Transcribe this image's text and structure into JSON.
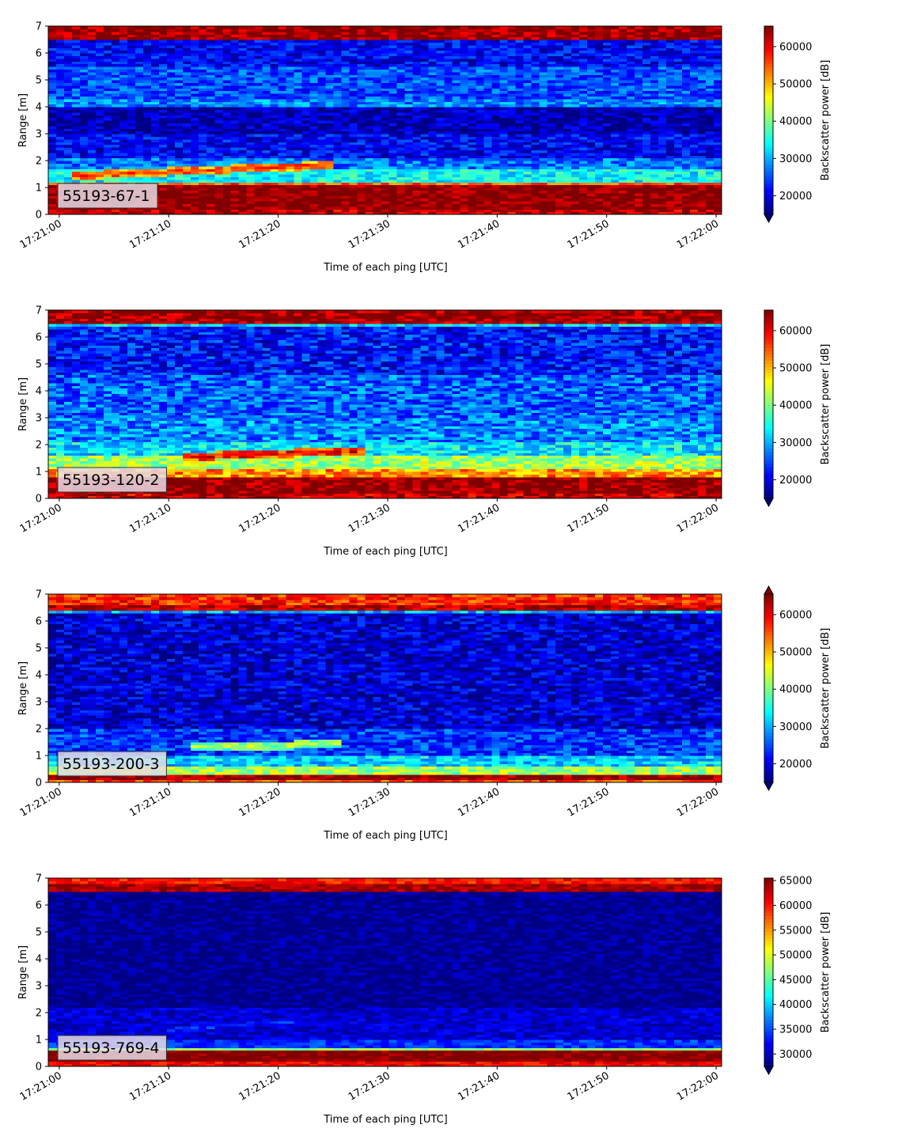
{
  "chart_data": [
    {
      "type": "heatmap",
      "label": "55193-67-1",
      "xlabel": "Time of each ping [UTC]",
      "ylabel": "Range [m]",
      "x_ticks": [
        "17:21:00",
        "17:21:10",
        "17:21:20",
        "17:21:30",
        "17:21:40",
        "17:21:50",
        "17:22:00"
      ],
      "y_ticks": [
        "0",
        "1",
        "2",
        "3",
        "4",
        "5",
        "6",
        "7"
      ],
      "xlim": [
        "17:20:59",
        "17:22:00.5"
      ],
      "ylim": [
        0,
        7
      ],
      "colorbar": {
        "label": "Backscatter power [dB]",
        "ticks": [
          "20000",
          "30000",
          "40000",
          "50000",
          "60000"
        ],
        "range": [
          15000,
          65500
        ],
        "colormap": "jet",
        "extend": "min"
      },
      "bands": [
        {
          "from": 0.0,
          "to": 0.25,
          "value": 62000
        },
        {
          "from": 0.25,
          "to": 1.1,
          "value": 65500
        },
        {
          "from": 1.1,
          "to": 1.25,
          "value": 55000
        },
        {
          "from": 1.25,
          "to": 1.7,
          "value": 34000
        },
        {
          "from": 1.7,
          "to": 2.1,
          "value": 27000
        },
        {
          "from": 2.1,
          "to": 3.0,
          "value": 21000
        },
        {
          "from": 3.0,
          "to": 4.0,
          "value": 17500
        },
        {
          "from": 4.0,
          "to": 4.3,
          "value": 28000
        },
        {
          "from": 4.3,
          "to": 5.5,
          "value": 25000
        },
        {
          "from": 5.5,
          "to": 6.45,
          "value": 21000
        },
        {
          "from": 6.45,
          "to": 6.52,
          "value": 34000
        },
        {
          "from": 6.52,
          "to": 7.0,
          "value": 64000
        }
      ],
      "target": {
        "start_s": 1,
        "end_s": 25,
        "range_start": 1.45,
        "range_end": 1.85,
        "value_peak": 56000
      },
      "noise": 5000,
      "seed": 11
    },
    {
      "type": "heatmap",
      "label": "55193-120-2",
      "xlabel": "Time of each ping [UTC]",
      "ylabel": "Range [m]",
      "x_ticks": [
        "17:21:00",
        "17:21:10",
        "17:21:20",
        "17:21:30",
        "17:21:40",
        "17:21:50",
        "17:22:00"
      ],
      "y_ticks": [
        "0",
        "1",
        "2",
        "3",
        "4",
        "5",
        "6",
        "7"
      ],
      "xlim": [
        "17:20:59",
        "17:22:00.5"
      ],
      "ylim": [
        0,
        7
      ],
      "colorbar": {
        "label": "Backscatter power [dB]",
        "ticks": [
          "20000",
          "30000",
          "40000",
          "50000",
          "60000"
        ],
        "range": [
          15000,
          65500
        ],
        "colormap": "jet",
        "extend": "min"
      },
      "bands": [
        {
          "from": 0.0,
          "to": 0.25,
          "value": 62000
        },
        {
          "from": 0.25,
          "to": 0.85,
          "value": 65500
        },
        {
          "from": 0.85,
          "to": 1.1,
          "value": 52000
        },
        {
          "from": 1.1,
          "to": 1.6,
          "value": 42000
        },
        {
          "from": 1.6,
          "to": 2.1,
          "value": 33000
        },
        {
          "from": 2.1,
          "to": 3.0,
          "value": 28000
        },
        {
          "from": 3.0,
          "to": 4.6,
          "value": 26000
        },
        {
          "from": 4.6,
          "to": 6.4,
          "value": 22000
        },
        {
          "from": 6.4,
          "to": 6.48,
          "value": 32000
        },
        {
          "from": 6.48,
          "to": 7.0,
          "value": 64500
        }
      ],
      "target": {
        "start_s": 11,
        "end_s": 28,
        "range_start": 1.55,
        "range_end": 1.8,
        "value_peak": 60000
      },
      "noise": 6000,
      "seed": 22
    },
    {
      "type": "heatmap",
      "label": "55193-200-3",
      "xlabel": "Time of each ping [UTC]",
      "ylabel": "Range [m]",
      "x_ticks": [
        "17:21:00",
        "17:21:10",
        "17:21:20",
        "17:21:30",
        "17:21:40",
        "17:21:50",
        "17:22:00"
      ],
      "y_ticks": [
        "0",
        "1",
        "2",
        "3",
        "4",
        "5",
        "6",
        "7"
      ],
      "xlim": [
        "17:20:59",
        "17:22:00.5"
      ],
      "ylim": [
        0,
        7
      ],
      "colorbar": {
        "label": "Backscatter power [dB]",
        "ticks": [
          "20000",
          "30000",
          "40000",
          "50000",
          "60000"
        ],
        "range": [
          15000,
          65500
        ],
        "colormap": "jet",
        "extend": "both"
      },
      "bands": [
        {
          "from": 0.0,
          "to": 0.12,
          "value": 56000
        },
        {
          "from": 0.12,
          "to": 0.35,
          "value": 65000
        },
        {
          "from": 0.35,
          "to": 0.6,
          "value": 42000
        },
        {
          "from": 0.6,
          "to": 1.0,
          "value": 32000
        },
        {
          "from": 1.0,
          "to": 2.0,
          "value": 24000
        },
        {
          "from": 2.0,
          "to": 6.3,
          "value": 19000
        },
        {
          "from": 6.3,
          "to": 6.36,
          "value": 30000
        },
        {
          "from": 6.36,
          "to": 6.6,
          "value": 63000
        },
        {
          "from": 6.6,
          "to": 7.0,
          "value": 57000
        }
      ],
      "target": {
        "start_s": 12,
        "end_s": 26,
        "range_start": 1.3,
        "range_end": 1.45,
        "value_peak": 43000
      },
      "noise": 5500,
      "seed": 33
    },
    {
      "type": "heatmap",
      "label": "55193-769-4",
      "xlabel": "Time of each ping [UTC]",
      "ylabel": "Range [m]",
      "x_ticks": [
        "17:21:00",
        "17:21:10",
        "17:21:20",
        "17:21:30",
        "17:21:40",
        "17:21:50",
        "17:22:00"
      ],
      "y_ticks": [
        "0",
        "1",
        "2",
        "3",
        "4",
        "5",
        "6",
        "7"
      ],
      "xlim": [
        "17:20:59",
        "17:22:00.5"
      ],
      "ylim": [
        0,
        7
      ],
      "colorbar": {
        "label": "Backscatter power [dB]",
        "ticks": [
          "30000",
          "35000",
          "40000",
          "45000",
          "50000",
          "55000",
          "60000",
          "65000"
        ],
        "range": [
          27500,
          65500
        ],
        "colormap": "jet",
        "extend": "min"
      },
      "bands": [
        {
          "from": 0.0,
          "to": 0.2,
          "value": 61000
        },
        {
          "from": 0.2,
          "to": 0.65,
          "value": 65500
        },
        {
          "from": 0.65,
          "to": 0.75,
          "value": 47000
        },
        {
          "from": 0.75,
          "to": 1.0,
          "value": 34000
        },
        {
          "from": 1.0,
          "to": 2.2,
          "value": 30500
        },
        {
          "from": 2.2,
          "to": 6.45,
          "value": 28000
        },
        {
          "from": 6.45,
          "to": 6.85,
          "value": 64000
        },
        {
          "from": 6.85,
          "to": 7.0,
          "value": 60000
        }
      ],
      "target": {
        "start_s": 10,
        "end_s": 22,
        "range_start": 1.4,
        "range_end": 1.7,
        "value_peak": 35000
      },
      "noise": 2500,
      "seed": 44
    }
  ]
}
